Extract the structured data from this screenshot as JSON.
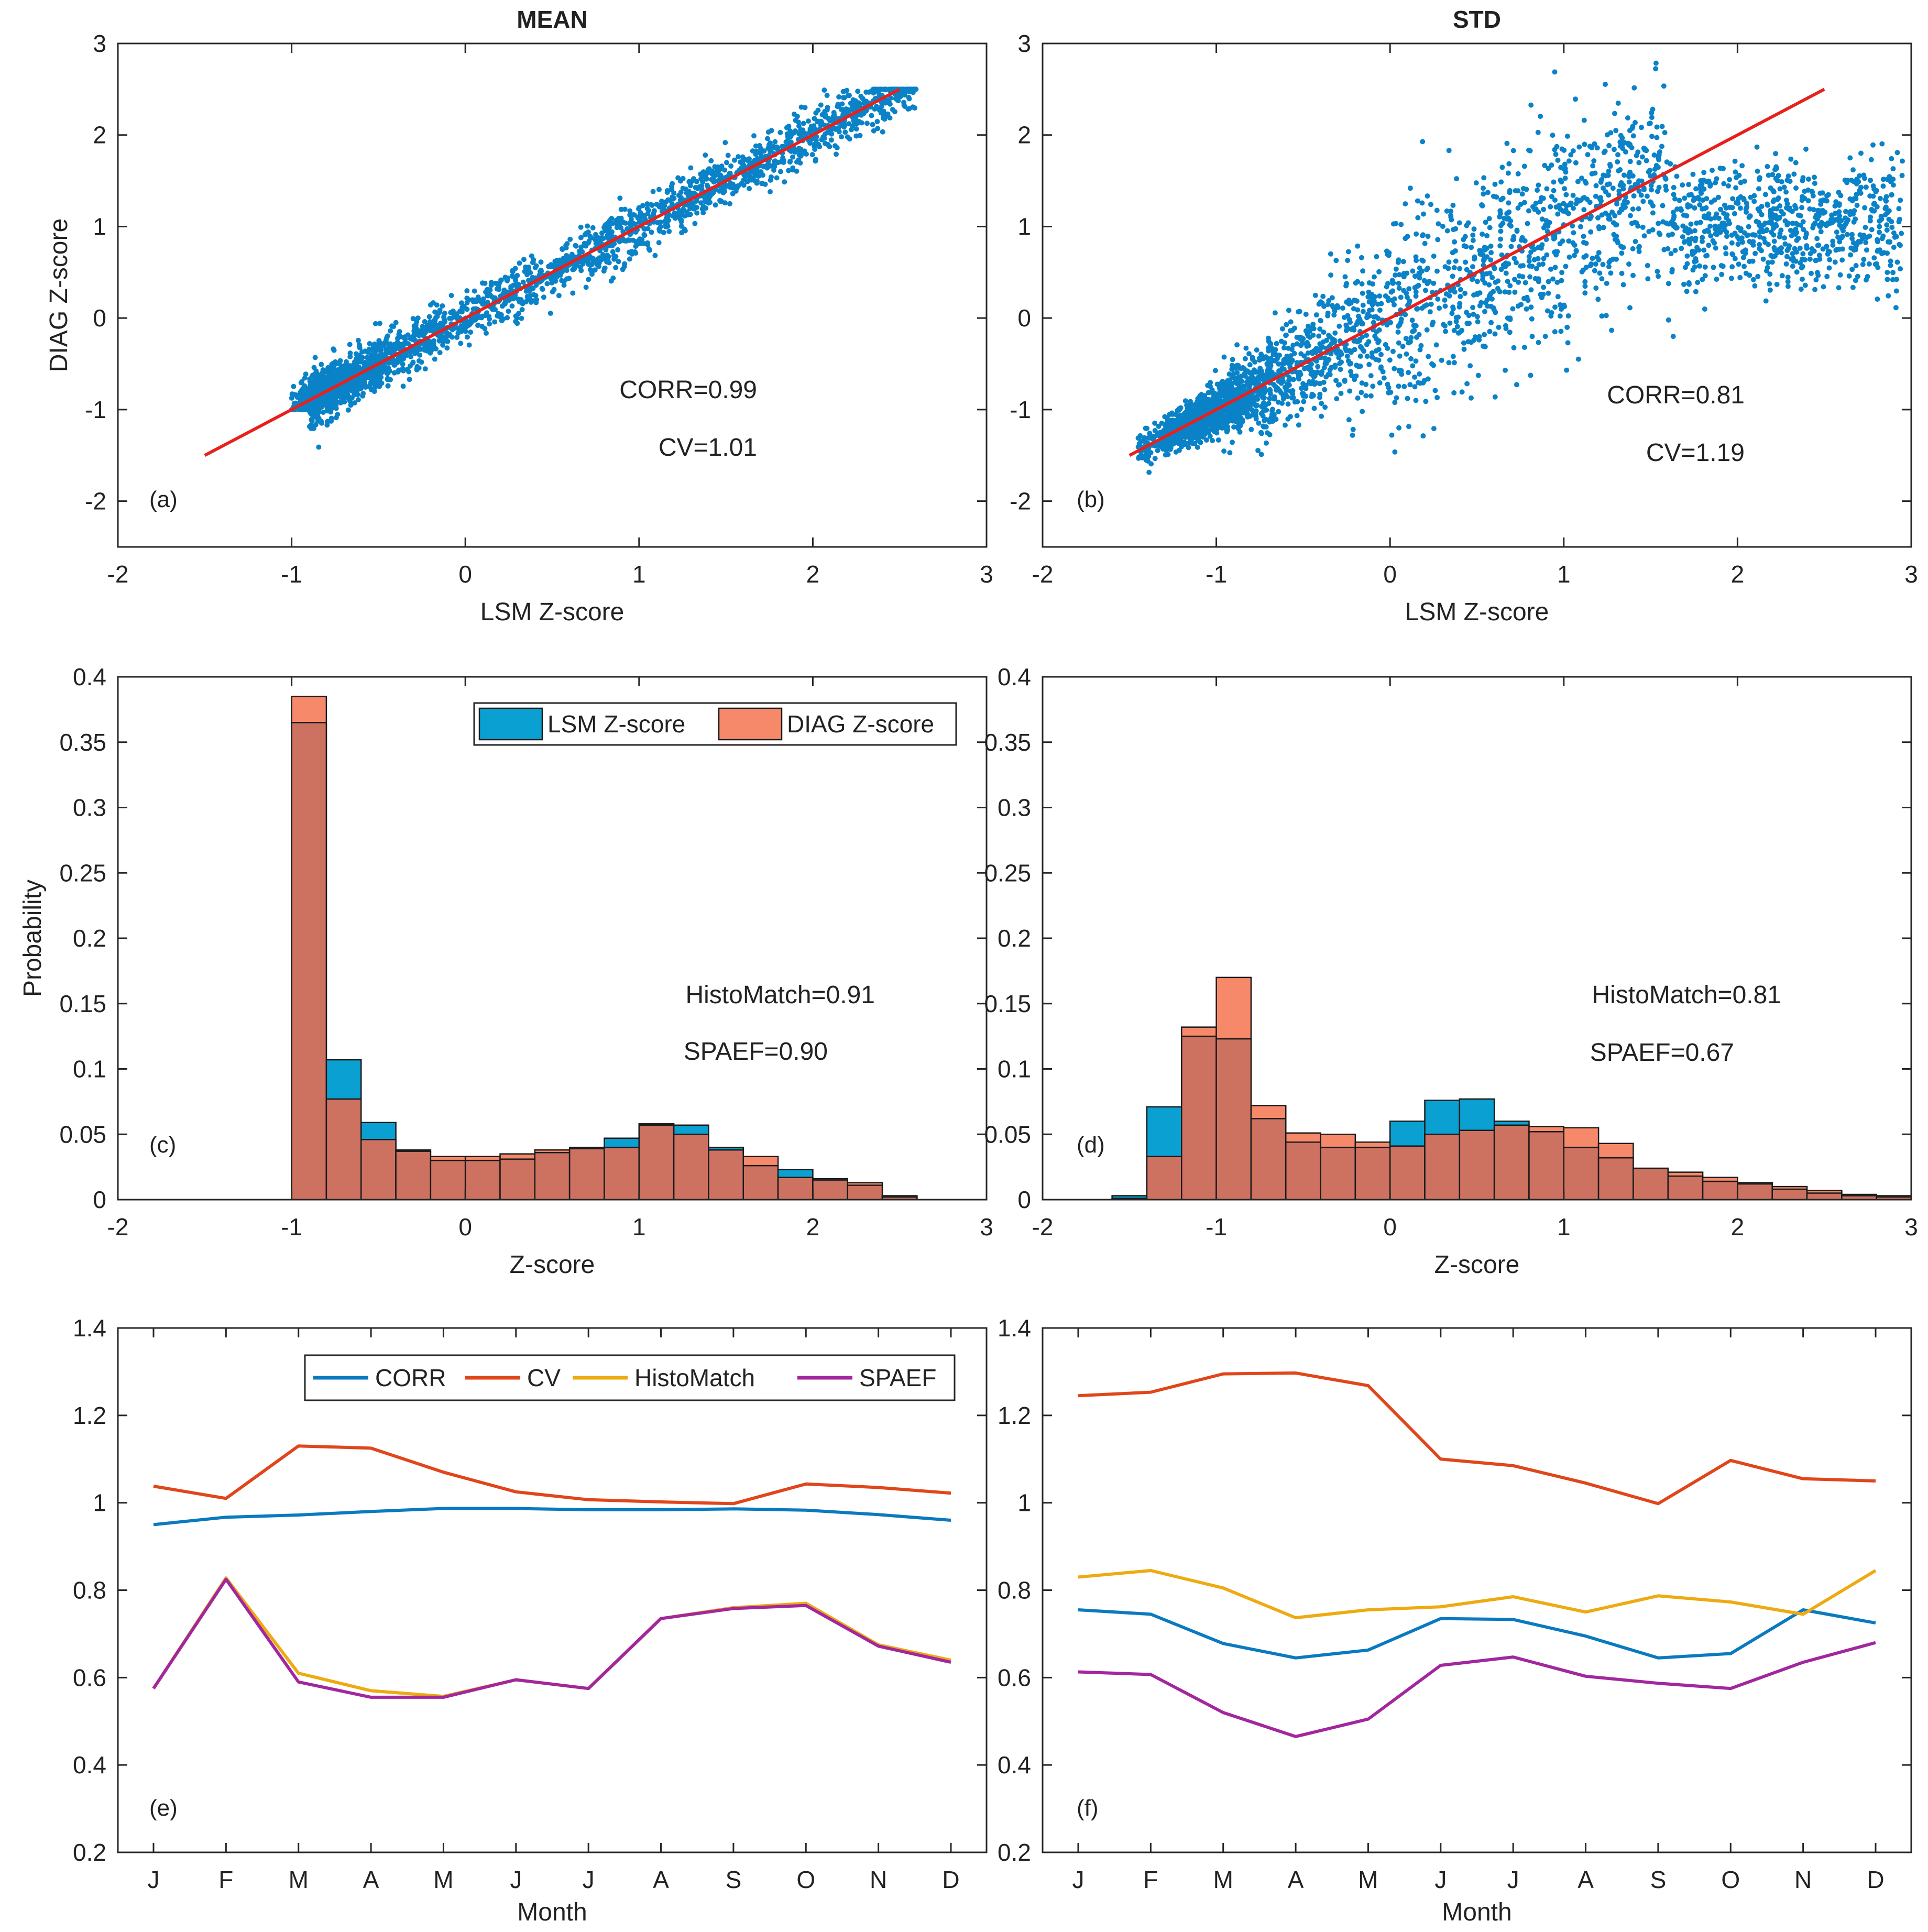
{
  "figure": {
    "column_titles": [
      "MEAN",
      "STD"
    ]
  },
  "chart_data": [
    {
      "id": "a",
      "type": "scatter",
      "panel_label": "(a)",
      "title": "MEAN",
      "xlabel": "LSM Z-score",
      "ylabel": "DIAG Z-score",
      "xlim": [
        -2,
        3
      ],
      "ylim": [
        -2.5,
        3
      ],
      "xticks": [
        -2,
        -1,
        0,
        1,
        2,
        3
      ],
      "yticks": [
        -2,
        -1,
        0,
        1,
        2,
        3
      ],
      "point_color": "#0a82c8",
      "fit_line": {
        "color": "#e8201c",
        "x": [
          -1.5,
          2.5
        ],
        "y": [
          -1.5,
          2.5
        ]
      },
      "scatter_model": {
        "x_range": [
          -1.0,
          2.6
        ],
        "spread": 0.14,
        "count": 2600
      },
      "annotations": [
        "CORR=0.99",
        "CV=1.01"
      ]
    },
    {
      "id": "b",
      "type": "scatter",
      "panel_label": "(b)",
      "title": "STD",
      "xlabel": "LSM Z-score",
      "ylabel": "",
      "xlim": [
        -2,
        3
      ],
      "ylim": [
        -2.5,
        3
      ],
      "xticks": [
        -2,
        -1,
        0,
        1,
        2,
        3
      ],
      "yticks": [
        -2,
        -1,
        0,
        1,
        2,
        3
      ],
      "point_color": "#0a82c8",
      "fit_line": {
        "color": "#e8201c",
        "x": [
          -1.5,
          2.5
        ],
        "y": [
          -1.5,
          2.5
        ]
      },
      "scatter_model": {
        "x_range": [
          -1.45,
          2.95
        ],
        "spread": 0.55,
        "count": 3600
      },
      "annotations": [
        "CORR=0.81",
        "CV=1.19"
      ]
    },
    {
      "id": "c",
      "type": "bar",
      "panel_label": "(c)",
      "xlabel": "Z-score",
      "ylabel": "Probability",
      "xlim": [
        -2,
        3
      ],
      "ylim": [
        0,
        0.4
      ],
      "xticks": [
        -2,
        -1,
        0,
        1,
        2,
        3
      ],
      "yticks": [
        0,
        0.05,
        0.1,
        0.15,
        0.2,
        0.25,
        0.3,
        0.35,
        0.4
      ],
      "bin_edges": [
        -1.0,
        -0.8,
        -0.6,
        -0.4,
        -0.2,
        0.0,
        0.2,
        0.4,
        0.6,
        0.8,
        1.0,
        1.2,
        1.4,
        1.6,
        1.8,
        2.0,
        2.2,
        2.4,
        2.6
      ],
      "series": [
        {
          "name": "LSM Z-score",
          "color": "#0aa0d2",
          "values": [
            0.365,
            0.107,
            0.059,
            0.037,
            0.03,
            0.03,
            0.031,
            0.036,
            0.039,
            0.047,
            0.057,
            0.057,
            0.04,
            0.026,
            0.023,
            0.016,
            0.011,
            0.003
          ]
        },
        {
          "name": "DIAG Z-score",
          "color": "#f7896b",
          "values": [
            0.385,
            0.077,
            0.046,
            0.038,
            0.033,
            0.033,
            0.035,
            0.038,
            0.04,
            0.04,
            0.058,
            0.05,
            0.038,
            0.033,
            0.017,
            0.015,
            0.013,
            0.002
          ]
        }
      ],
      "overlap_color": "#cd7260",
      "legend": {
        "position": "top-right",
        "entries": [
          "LSM Z-score",
          "DIAG Z-score"
        ]
      },
      "annotations": [
        "HistoMatch=0.91",
        "SPAEF=0.90"
      ]
    },
    {
      "id": "d",
      "type": "bar",
      "panel_label": "(d)",
      "xlabel": "Z-score",
      "ylabel": "",
      "xlim": [
        -2,
        3
      ],
      "ylim": [
        0,
        0.4
      ],
      "xticks": [
        -2,
        -1,
        0,
        1,
        2,
        3
      ],
      "yticks": [
        0,
        0.05,
        0.1,
        0.15,
        0.2,
        0.25,
        0.3,
        0.35,
        0.4
      ],
      "bin_edges": [
        -1.6,
        -1.4,
        -1.2,
        -1.0,
        -0.8,
        -0.6,
        -0.4,
        -0.2,
        0.0,
        0.2,
        0.4,
        0.6,
        0.8,
        1.0,
        1.2,
        1.4,
        1.6,
        1.8,
        2.0,
        2.2,
        2.4,
        2.6,
        2.8,
        3.0
      ],
      "series": [
        {
          "name": "LSM Z-score",
          "color": "#0aa0d2",
          "values": [
            0.003,
            0.071,
            0.125,
            0.123,
            0.062,
            0.044,
            0.04,
            0.04,
            0.06,
            0.076,
            0.077,
            0.06,
            0.052,
            0.04,
            0.032,
            0.024,
            0.018,
            0.014,
            0.012,
            0.008,
            0.005,
            0.003,
            0.002
          ]
        },
        {
          "name": "DIAG Z-score",
          "color": "#f7896b",
          "values": [
            0.001,
            0.033,
            0.132,
            0.17,
            0.072,
            0.051,
            0.05,
            0.044,
            0.041,
            0.05,
            0.053,
            0.057,
            0.056,
            0.055,
            0.043,
            0.024,
            0.021,
            0.017,
            0.013,
            0.01,
            0.007,
            0.004,
            0.003
          ]
        }
      ],
      "overlap_color": "#cd7260",
      "annotations": [
        "HistoMatch=0.81",
        "SPAEF=0.67"
      ]
    },
    {
      "id": "e",
      "type": "line",
      "panel_label": "(e)",
      "xlabel": "Month",
      "ylabel": "",
      "categories": [
        "J",
        "F",
        "M",
        "A",
        "M",
        "J",
        "J",
        "A",
        "S",
        "O",
        "N",
        "D"
      ],
      "ylim": [
        0.2,
        1.4
      ],
      "yticks": [
        0.2,
        0.4,
        0.6,
        0.8,
        1,
        1.2,
        1.4
      ],
      "series": [
        {
          "name": "CORR",
          "color": "#0a7ac0",
          "values": [
            0.95,
            0.967,
            0.972,
            0.98,
            0.987,
            0.987,
            0.984,
            0.984,
            0.986,
            0.983,
            0.973,
            0.96
          ]
        },
        {
          "name": "CV",
          "color": "#e0461a",
          "values": [
            1.038,
            1.01,
            1.13,
            1.125,
            1.07,
            1.025,
            1.007,
            1.002,
            0.998,
            1.043,
            1.035,
            1.022
          ]
        },
        {
          "name": "HistoMatch",
          "color": "#eeaa11",
          "values": [
            0.575,
            0.828,
            0.61,
            0.57,
            0.557,
            0.595,
            0.575,
            0.735,
            0.76,
            0.77,
            0.675,
            0.64
          ]
        },
        {
          "name": "SPAEF",
          "color": "#a2279e",
          "values": [
            0.575,
            0.825,
            0.59,
            0.555,
            0.555,
            0.595,
            0.575,
            0.735,
            0.758,
            0.765,
            0.672,
            0.635
          ]
        }
      ],
      "legend": {
        "position": "top",
        "entries": [
          "CORR",
          "CV",
          "HistoMatch",
          "SPAEF"
        ]
      }
    },
    {
      "id": "f",
      "type": "line",
      "panel_label": "(f)",
      "xlabel": "Month",
      "ylabel": "",
      "categories": [
        "J",
        "F",
        "M",
        "A",
        "M",
        "J",
        "J",
        "A",
        "S",
        "O",
        "N",
        "D"
      ],
      "ylim": [
        0.2,
        1.4
      ],
      "yticks": [
        0.2,
        0.4,
        0.6,
        0.8,
        1,
        1.2,
        1.4
      ],
      "series": [
        {
          "name": "CORR",
          "color": "#0a7ac0",
          "values": [
            0.755,
            0.745,
            0.678,
            0.645,
            0.663,
            0.735,
            0.733,
            0.695,
            0.645,
            0.655,
            0.755,
            0.725
          ]
        },
        {
          "name": "CV",
          "color": "#e0461a",
          "values": [
            1.245,
            1.253,
            1.295,
            1.297,
            1.268,
            1.1,
            1.085,
            1.045,
            0.998,
            1.097,
            1.055,
            1.05
          ]
        },
        {
          "name": "HistoMatch",
          "color": "#eeaa11",
          "values": [
            0.83,
            0.845,
            0.805,
            0.737,
            0.755,
            0.762,
            0.785,
            0.75,
            0.787,
            0.773,
            0.745,
            0.845
          ]
        },
        {
          "name": "SPAEF",
          "color": "#a2279e",
          "values": [
            0.613,
            0.607,
            0.52,
            0.465,
            0.505,
            0.628,
            0.647,
            0.603,
            0.587,
            0.575,
            0.635,
            0.68
          ]
        }
      ]
    }
  ]
}
